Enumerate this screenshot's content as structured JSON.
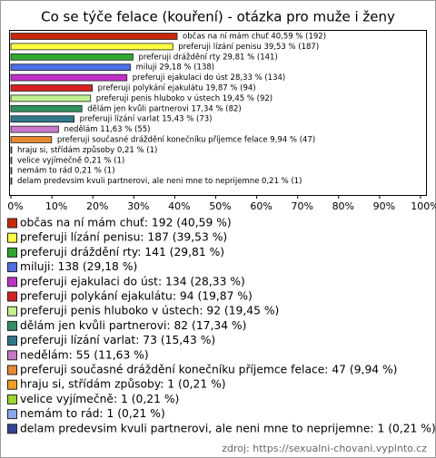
{
  "chart_data": {
    "type": "bar",
    "orientation": "horizontal",
    "title": "Co se týče felace (kouření) - otázka pro muže i ženy",
    "values": [
      40.59,
      39.53,
      29.81,
      29.18,
      28.33,
      19.87,
      19.45,
      17.34,
      15.43,
      11.63,
      9.94,
      0.21,
      0.21,
      0.21,
      0.21
    ],
    "value_labels": [
      "občas na ní mám chuť 40,59 % (192)",
      "preferuji lízání penisu 39,53 % (187)",
      "preferuji dráždění rty 29,81 % (141)",
      "miluji 29,18 % (138)",
      "preferuji ejakulaci do úst 28,33 % (134)",
      "preferuji polykání ejakulátu 19,87 % (94)",
      "preferuji penis hluboko v ústech 19,45 % (92)",
      "dělám jen kvůli partnerovi 17,34 % (82)",
      "preferuji lízání varlat 15,43 % (73)",
      "nedělám 11,63 % (55)",
      "preferuji současné dráždění konečníku příjemce felace 9,94 % (47)",
      "hraju si, střídám způsoby 0,21 % (1)",
      "velice vyjímečně 0,21 % (1)",
      "nemám to rád 0,21 % (1)",
      "delam predevsim kvuli partnerovi, ale neni mne to neprijemne 0,21 % (1)"
    ],
    "legend_labels": [
      "občas na ní mám chuť: 192 (40,59 %)",
      "preferuji lízání penisu: 187 (39,53 %)",
      "preferuji dráždění rty: 141 (29,81 %)",
      "miluji: 138 (29,18 %)",
      "preferuji ejakulaci do úst: 134 (28,33 %)",
      "preferuji polykání ejakulátu: 94 (19,87 %)",
      "preferuji penis hluboko v ústech: 92 (19,45 %)",
      "dělám jen kvůli partnerovi: 82 (17,34 %)",
      "preferuji lízání varlat: 73 (15,43 %)",
      "nedělám: 55 (11,63 %)",
      "preferuji současné dráždění konečníku příjemce felace: 47 (9,94 %)",
      "hraju si, střídám způsoby: 1 (0,21 %)",
      "velice vyjímečně: 1 (0,21 %)",
      "nemám to rád: 1 (0,21 %)",
      "delam predevsim kvuli partnerovi, ale neni mne to neprijemne: 1 (0,21 %)"
    ],
    "colors": [
      "#c8280a",
      "#ffff40",
      "#30a830",
      "#4f6fe8",
      "#c030c8",
      "#d82020",
      "#c0f090",
      "#309060",
      "#307888",
      "#c878c8",
      "#e88830",
      "#f0a020",
      "#98d830",
      "#88a8f0",
      "#304498"
    ],
    "xlim": [
      0,
      100
    ],
    "xticks": [
      {
        "value": 0,
        "label": "0%"
      },
      {
        "value": 10,
        "label": "10%"
      },
      {
        "value": 20,
        "label": "20%"
      },
      {
        "value": 30,
        "label": "30%"
      },
      {
        "value": 40,
        "label": "40%"
      },
      {
        "value": 50,
        "label": "50%"
      },
      {
        "value": 60,
        "label": "60%"
      },
      {
        "value": 70,
        "label": "70%"
      },
      {
        "value": 80,
        "label": "80%"
      },
      {
        "value": 90,
        "label": "90%"
      },
      {
        "value": 100,
        "label": "100%"
      }
    ],
    "source": "zdroj: https://sexualni-chovani.vyplnto.cz"
  }
}
